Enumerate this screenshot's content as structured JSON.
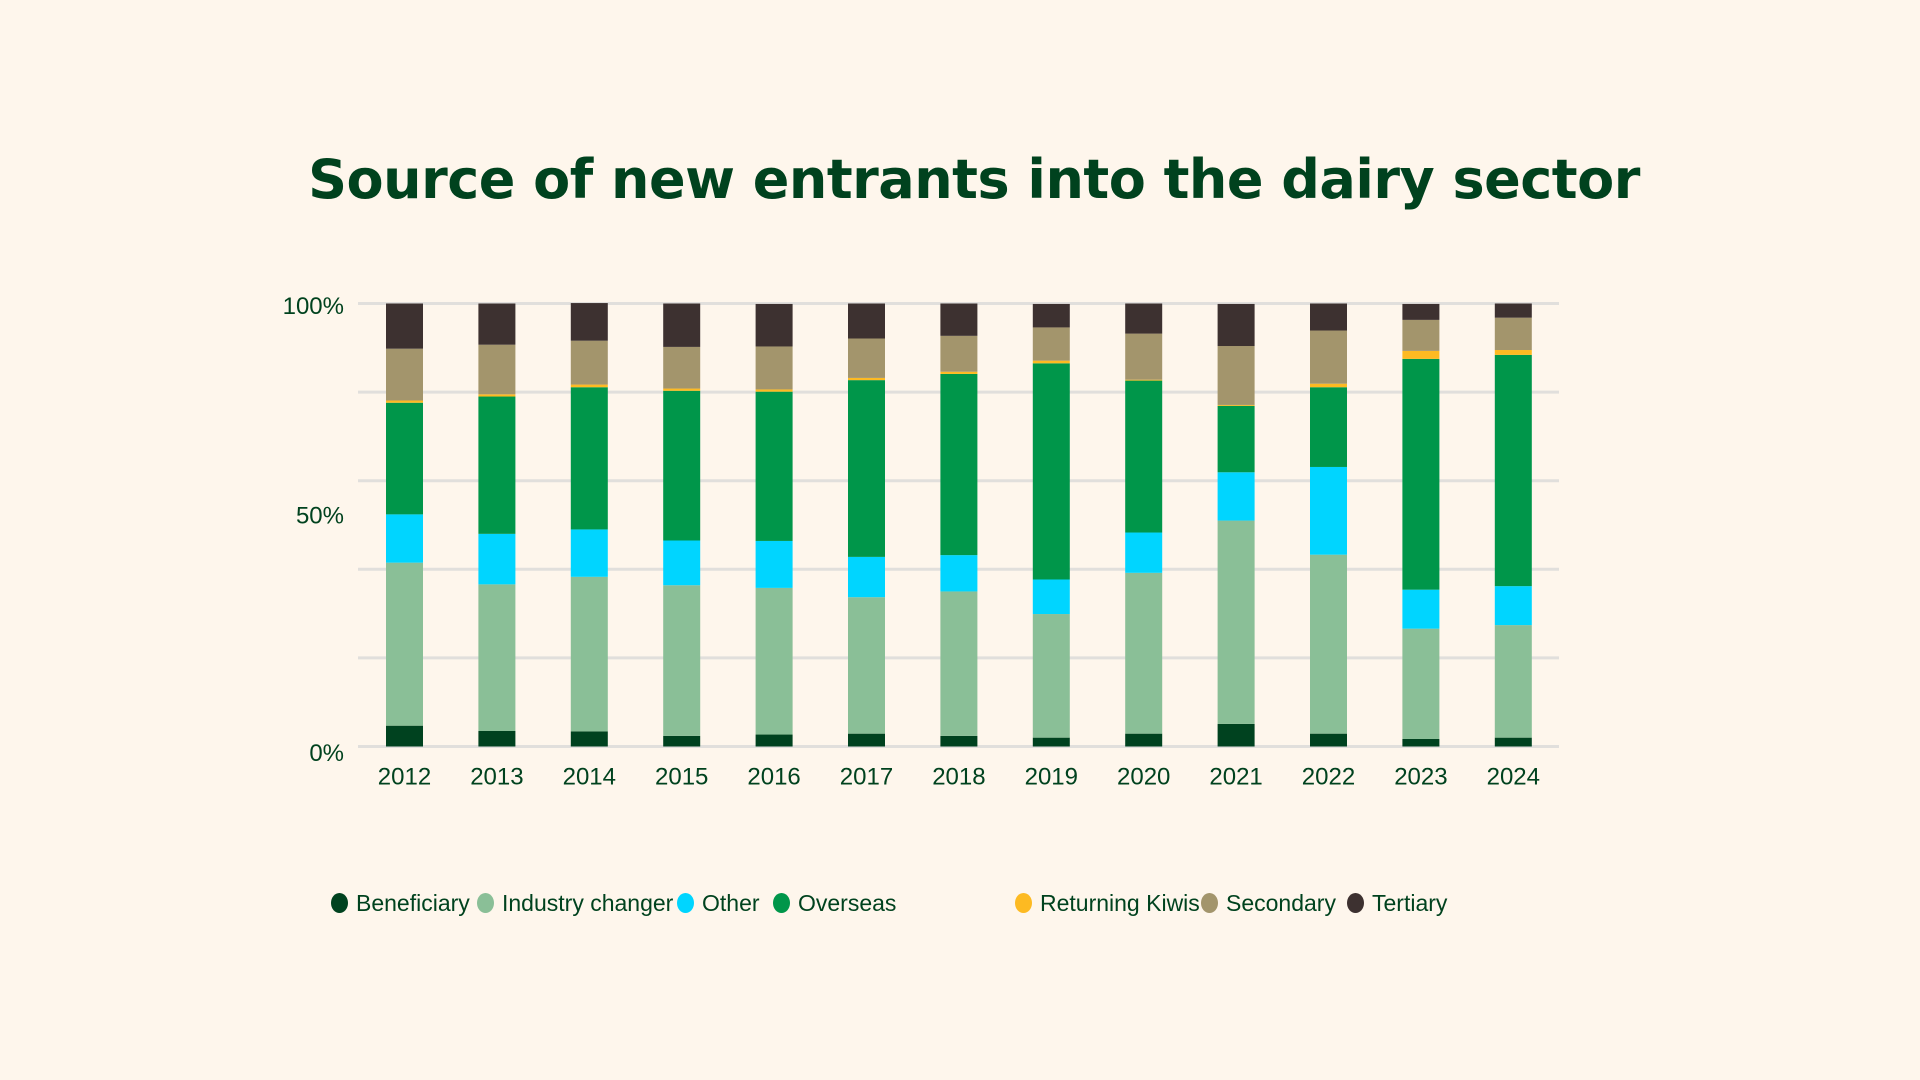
{
  "chart_data": {
    "type": "bar",
    "stacked": true,
    "normalized": true,
    "title": "Source of new entrants into the dairy sector",
    "xlabel": "",
    "ylabel": "",
    "ylim": [
      0,
      100
    ],
    "y_ticks": [
      {
        "value": 0,
        "label": "0%"
      },
      {
        "value": 50,
        "label": "50%"
      },
      {
        "value": 100,
        "label": "100%"
      }
    ],
    "gridlines": [
      0,
      20,
      40,
      60,
      80,
      100
    ],
    "grid": true,
    "legend_position": "bottom",
    "categories": [
      "2012",
      "2013",
      "2014",
      "2015",
      "2016",
      "2017",
      "2018",
      "2019",
      "2020",
      "2021",
      "2022",
      "2023",
      "2024"
    ],
    "series": [
      {
        "name": "Beneficiary",
        "color": "#00421F",
        "values": [
          4.7,
          3.5,
          3.4,
          2.4,
          2.7,
          2.9,
          2.4,
          2.0,
          2.9,
          5.1,
          2.9,
          1.7,
          2.0
        ]
      },
      {
        "name": "Industry changer",
        "color": "#8ABF97",
        "values": [
          36.8,
          33.1,
          34.9,
          34.0,
          33.1,
          30.8,
          32.6,
          27.9,
          36.3,
          45.9,
          40.4,
          24.9,
          25.4
        ]
      },
      {
        "name": "Other",
        "color": "#00D5FF",
        "values": [
          10.9,
          11.4,
          10.7,
          10.1,
          10.6,
          9.1,
          8.2,
          7.8,
          9.1,
          10.9,
          19.8,
          8.8,
          8.8
        ]
      },
      {
        "name": "Overseas",
        "color": "#00964A",
        "values": [
          25.2,
          31.0,
          32.1,
          33.8,
          33.7,
          39.9,
          40.9,
          48.8,
          34.3,
          15.0,
          18.0,
          52.1,
          52.2
        ]
      },
      {
        "name": "Returning Kiwis",
        "color": "#FDBA22",
        "values": [
          0.5,
          0.5,
          0.6,
          0.5,
          0.5,
          0.5,
          0.5,
          0.6,
          0.2,
          0.2,
          0.8,
          1.8,
          1.1
        ]
      },
      {
        "name": "Secondary",
        "color": "#A3956C",
        "values": [
          11.7,
          11.2,
          9.9,
          9.4,
          9.7,
          8.9,
          8.1,
          7.5,
          10.4,
          13.3,
          12.0,
          7.0,
          7.3
        ]
      },
      {
        "name": "Tertiary",
        "color": "#3D3130",
        "values": [
          10.2,
          9.3,
          8.5,
          9.8,
          9.6,
          7.9,
          7.3,
          5.3,
          6.8,
          9.5,
          6.1,
          3.6,
          3.2
        ]
      }
    ]
  },
  "colors": {
    "background": "#FEF6EC",
    "text": "#00421E",
    "gridline": "#E1DFDC"
  }
}
